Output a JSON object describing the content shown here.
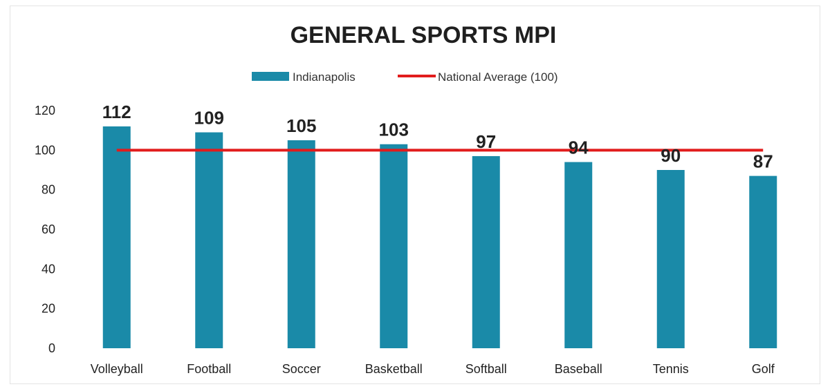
{
  "chart_data": {
    "type": "bar",
    "title": "GENERAL SPORTS MPI",
    "categories": [
      "Volleyball",
      "Football",
      "Soccer",
      "Basketball",
      "Softball",
      "Baseball",
      "Tennis",
      "Golf"
    ],
    "series": [
      {
        "name": "Indianapolis",
        "type": "bar",
        "color": "#1a8aa8",
        "values": [
          112,
          109,
          105,
          103,
          97,
          94,
          90,
          87
        ]
      },
      {
        "name": "National Average (100)",
        "type": "line",
        "color": "#e11c1c",
        "values": [
          100,
          100,
          100,
          100,
          100,
          100,
          100,
          100
        ]
      }
    ],
    "data_labels": [
      "112",
      "109",
      "105",
      "103",
      "97",
      "94",
      "90",
      "87"
    ],
    "ylim": [
      0,
      120
    ],
    "yticks": [
      0,
      20,
      40,
      60,
      80,
      100,
      120
    ],
    "ytick_labels": [
      "0",
      "20",
      "40",
      "60",
      "80",
      "100",
      "120"
    ],
    "xlabel": "",
    "ylabel": "",
    "legend_position": "top",
    "grid": false
  }
}
